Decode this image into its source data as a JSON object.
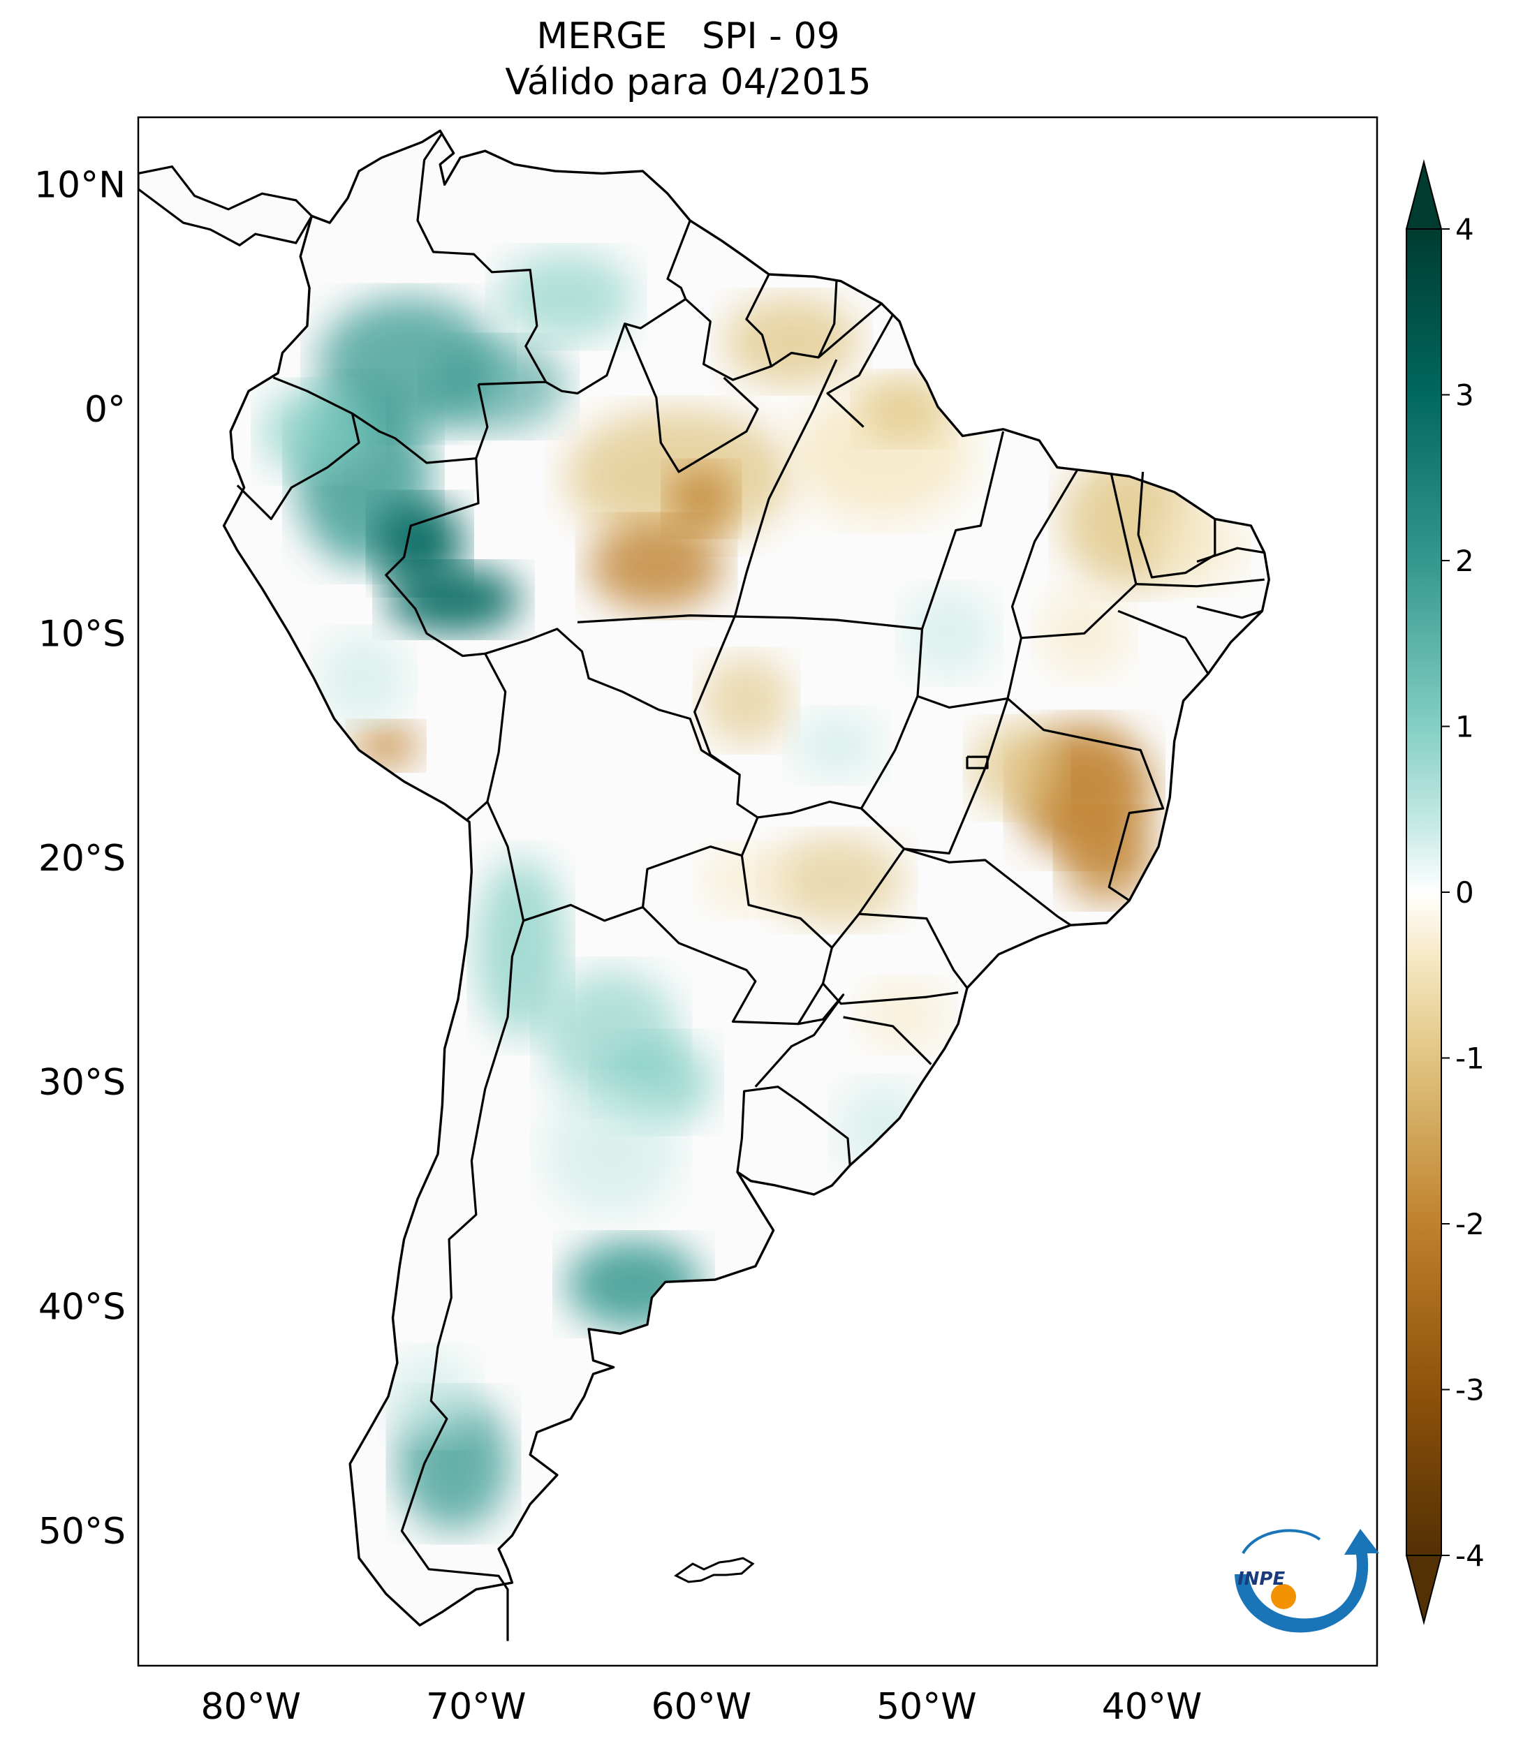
{
  "title": "MERGE   SPI - 09",
  "subtitle": "Válido para 04/2015",
  "map": {
    "lat_ticks": [
      "10°N",
      "0°",
      "10°S",
      "20°S",
      "30°S",
      "40°S",
      "50°S"
    ],
    "lon_ticks": [
      "80°W",
      "70°W",
      "60°W",
      "50°W",
      "40°W"
    ],
    "lon_range": [
      -85,
      -30
    ],
    "lat_range": [
      -56,
      13
    ]
  },
  "colorbar": {
    "ticks": [
      "4",
      "3",
      "2",
      "1",
      "0",
      "-1",
      "-2",
      "-3",
      "-4"
    ],
    "range": [
      -4,
      4
    ],
    "colors": {
      "wet_extreme": "#003c30",
      "wet_strong": "#01665e",
      "wet_moderate": "#35978f",
      "wet_light": "#80cdc1",
      "wet_faint": "#c7eae5",
      "neutral": "#f5f5f5",
      "dry_faint": "#f6e8c3",
      "dry_light": "#dfc27d",
      "dry_moderate": "#bf812d",
      "dry_strong": "#8c510a",
      "dry_extreme": "#543005"
    }
  },
  "logo": {
    "text": "INPE"
  }
}
